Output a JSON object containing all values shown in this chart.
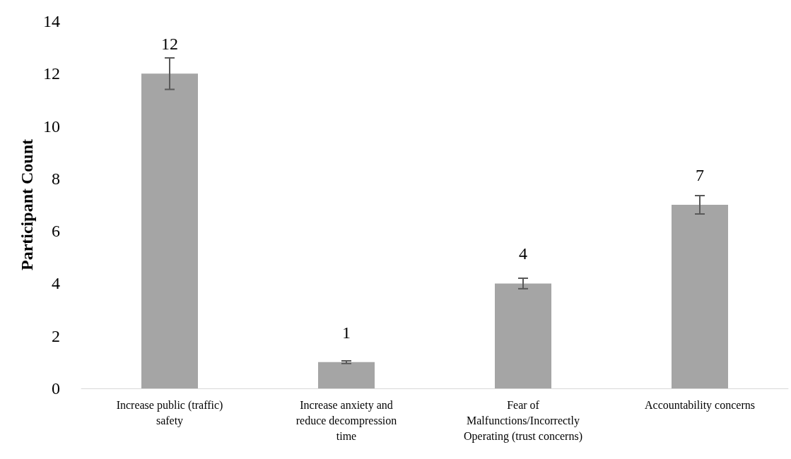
{
  "chart_data": {
    "type": "bar",
    "ylabel": "Participant Count",
    "categories": [
      "Increase public (traffic)\nsafety",
      "Increase anxiety and\nreduce decompression\ntime",
      "Fear of\nMalfunctions/Incorrectly\nOperating (trust concerns)",
      "Accountability concerns"
    ],
    "values": [
      12,
      1,
      4,
      7
    ],
    "errors": [
      0.6,
      0.05,
      0.2,
      0.35
    ],
    "color": "#a5a5a5",
    "ylim": [
      0,
      14
    ],
    "yticks": [
      0,
      2,
      4,
      6,
      8,
      10,
      12,
      14
    ],
    "data_labels": true,
    "grid": false
  }
}
